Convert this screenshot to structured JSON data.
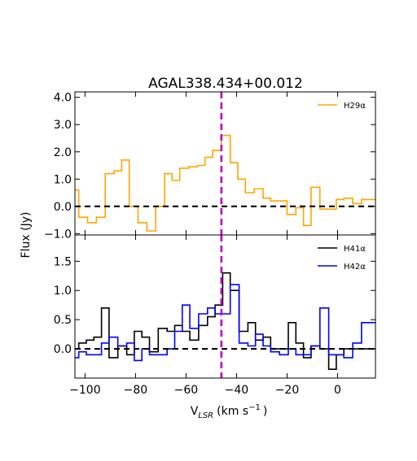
{
  "chart_data": {
    "title": "AGAL338.434+00.012",
    "xlabel_prefix": "V",
    "xlabel_sub": "LSR",
    "xlabel_suffix": "(km s",
    "xlabel_sup": "−1",
    "xlabel_close": ")",
    "ylabel": "Flux (Jy)",
    "xlim": [
      -104,
      15
    ],
    "xticks": [
      -100,
      -80,
      -60,
      -40,
      -20,
      0
    ],
    "xtick_labels": [
      "−100",
      "−80",
      "−60",
      "−40",
      "−20",
      "0"
    ],
    "vline_x": -46,
    "vline_color": "#bf00bf",
    "zero_line_color": "#000000",
    "panels": [
      {
        "type": "line",
        "step": "mid",
        "ylim": [
          -1.05,
          4.2
        ],
        "yticks": [
          -1.0,
          0.0,
          1.0,
          2.0,
          3.0,
          4.0
        ],
        "ytick_labels": [
          "−1.0",
          "0.0",
          "1.0",
          "2.0",
          "3.0",
          "4.0"
        ],
        "legend_loc": "upper right",
        "series": [
          {
            "name": "H29α",
            "color": "#ffa500",
            "x": [
              -104,
              -101,
              -97,
              -94,
              -90,
              -87,
              -84,
              -81,
              -77,
              -74,
              -70,
              -67,
              -64,
              -61,
              -57,
              -54,
              -51,
              -48,
              -44,
              -41,
              -38,
              -35,
              -31,
              -28,
              -25,
              -22,
              -18,
              -15,
              -12,
              -9,
              -5,
              -2,
              1,
              4,
              8,
              11,
              14
            ],
            "y": [
              0.6,
              -0.4,
              -0.6,
              -0.4,
              1.2,
              1.3,
              1.7,
              0.0,
              -0.6,
              -0.9,
              0.0,
              1.2,
              0.95,
              1.4,
              1.45,
              1.5,
              1.8,
              2.05,
              2.6,
              1.6,
              1.0,
              0.5,
              0.65,
              0.3,
              0.2,
              0.2,
              -0.3,
              -0.05,
              -0.7,
              0.7,
              -0.1,
              -0.1,
              0.25,
              0.3,
              0.1,
              0.25,
              0.25
            ]
          }
        ]
      },
      {
        "type": "line",
        "step": "mid",
        "ylim": [
          -0.5,
          1.95
        ],
        "yticks": [
          0.0,
          0.5,
          1.0,
          1.5
        ],
        "ytick_labels": [
          "0.0",
          "0.5",
          "1.0",
          "1.5"
        ],
        "legend_loc": "upper right",
        "series": [
          {
            "name": "H41α",
            "color": "#000000",
            "x": [
              -104,
              -101,
              -98,
              -95,
              -92,
              -89,
              -85,
              -82,
              -79,
              -76,
              -73,
              -69,
              -66,
              -63,
              -60,
              -57,
              -53,
              -50,
              -47,
              -44,
              -41,
              -37,
              -34,
              -31,
              -28,
              -25,
              -21,
              -18,
              -15,
              -12,
              -9,
              -5,
              -2,
              1,
              4,
              8,
              11,
              14
            ],
            "y": [
              0.0,
              0.1,
              0.15,
              0.2,
              0.7,
              -0.15,
              0.05,
              -0.1,
              0.3,
              0.2,
              -0.05,
              0.35,
              0.3,
              0.4,
              0.3,
              0.15,
              0.4,
              0.55,
              0.75,
              1.3,
              1.0,
              0.3,
              0.45,
              0.15,
              0.2,
              0.0,
              0.0,
              0.45,
              0.1,
              -0.15,
              0.05,
              0.0,
              -0.35,
              -0.1,
              0.0,
              0.0,
              0.0,
              0.0
            ]
          },
          {
            "name": "H42α",
            "color": "#0000ff",
            "x": [
              -104,
              -101,
              -98,
              -95,
              -92,
              -89,
              -85,
              -82,
              -79,
              -76,
              -73,
              -69,
              -66,
              -63,
              -60,
              -57,
              -53,
              -50,
              -47,
              -44,
              -41,
              -37,
              -34,
              -31,
              -28,
              -25,
              -21,
              -18,
              -15,
              -12,
              -9,
              -5,
              -2,
              1,
              4,
              8,
              11,
              14
            ],
            "y": [
              -0.15,
              -0.05,
              -0.1,
              -0.1,
              0.1,
              0.2,
              0.05,
              0.1,
              -0.2,
              0.0,
              -0.1,
              -0.1,
              0.0,
              0.3,
              0.75,
              0.35,
              0.6,
              0.7,
              0.6,
              0.6,
              1.1,
              0.1,
              0.05,
              0.25,
              0.05,
              -0.05,
              -0.1,
              0.0,
              -0.1,
              -0.1,
              0.05,
              0.7,
              -0.1,
              -0.1,
              -0.15,
              0.1,
              0.45,
              0.45
            ]
          }
        ]
      }
    ]
  }
}
